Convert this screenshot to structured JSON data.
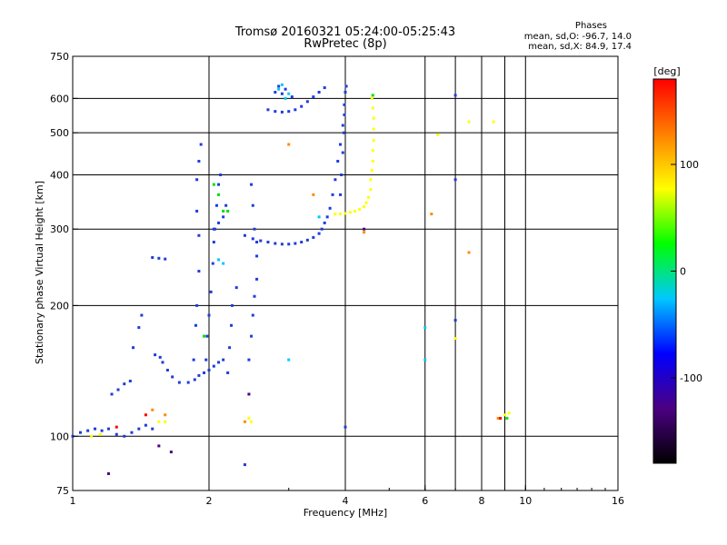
{
  "chart_data": {
    "type": "scatter",
    "title": "Tromsø 20160321 05:24:00-05:25:43",
    "subtitle": "RwPretec (8p)",
    "xlabel": "Frequency [MHz]",
    "ylabel": "Stationary phase Virtual Height [km]",
    "x_scale": "log2",
    "y_scale": "log",
    "xlim": [
      1,
      16
    ],
    "ylim": [
      75,
      750
    ],
    "x_ticks": [
      1,
      2,
      4,
      6,
      8,
      10,
      16
    ],
    "x_tick_labels": [
      "1",
      "2",
      "4",
      "6",
      "8",
      "10",
      "16"
    ],
    "x_grid": [
      2,
      4,
      6,
      7,
      8,
      9,
      10
    ],
    "y_ticks": [
      75,
      100,
      200,
      300,
      400,
      500,
      600,
      750
    ],
    "y_tick_labels": [
      "75",
      "100",
      "200",
      "300",
      "400",
      "500",
      "600",
      "750"
    ],
    "y_grid": [
      100,
      200,
      300,
      400,
      500,
      600
    ],
    "grid": true,
    "stats": {
      "title": "Phases",
      "line_o": "mean, sd,O: -96.7, 14.0",
      "line_x": "mean, sd,X:  84.9, 17.4"
    },
    "colorbar": {
      "label": "[deg]",
      "range": [
        -180,
        180
      ],
      "ticks": [
        100,
        0,
        -100
      ],
      "tick_labels": [
        "100",
        "0",
        "-100"
      ],
      "colors": [
        "#000000",
        "#4b0082",
        "#0000ff",
        "#00c8ff",
        "#00ff00",
        "#ffff00",
        "#ff8000",
        "#ff0000"
      ]
    },
    "series": [
      {
        "color": "#1e3cdc",
        "points": [
          [
            1.0,
            100
          ],
          [
            1.04,
            102
          ],
          [
            1.08,
            103
          ],
          [
            1.12,
            104
          ],
          [
            1.16,
            103
          ],
          [
            1.2,
            104
          ],
          [
            1.25,
            101
          ],
          [
            1.3,
            100
          ],
          [
            1.35,
            102
          ],
          [
            1.4,
            104
          ],
          [
            1.45,
            106
          ],
          [
            1.5,
            104
          ],
          [
            1.22,
            125
          ],
          [
            1.26,
            128
          ],
          [
            1.3,
            132
          ],
          [
            1.34,
            134
          ],
          [
            1.36,
            160
          ],
          [
            1.4,
            178
          ],
          [
            1.42,
            190
          ],
          [
            1.5,
            258
          ],
          [
            1.55,
            257
          ],
          [
            1.6,
            256
          ],
          [
            1.52,
            154
          ],
          [
            1.56,
            152
          ],
          [
            1.58,
            148
          ],
          [
            1.62,
            142
          ],
          [
            1.66,
            137
          ],
          [
            1.72,
            133
          ],
          [
            1.8,
            133
          ],
          [
            1.86,
            135
          ],
          [
            1.9,
            138
          ],
          [
            1.95,
            140
          ],
          [
            2.0,
            142
          ],
          [
            2.05,
            145
          ],
          [
            2.1,
            148
          ],
          [
            2.15,
            150
          ],
          [
            1.85,
            150
          ],
          [
            1.87,
            180
          ],
          [
            1.88,
            200
          ],
          [
            1.9,
            240
          ],
          [
            1.9,
            290
          ],
          [
            1.88,
            330
          ],
          [
            1.88,
            390
          ],
          [
            1.9,
            430
          ],
          [
            1.92,
            470
          ],
          [
            1.97,
            150
          ],
          [
            1.98,
            170
          ],
          [
            2.0,
            190
          ],
          [
            2.02,
            215
          ],
          [
            2.04,
            250
          ],
          [
            2.05,
            280
          ],
          [
            2.06,
            300
          ],
          [
            2.08,
            340
          ],
          [
            2.1,
            380
          ],
          [
            2.12,
            400
          ],
          [
            2.05,
            300
          ],
          [
            2.1,
            310
          ],
          [
            2.15,
            320
          ],
          [
            2.18,
            340
          ],
          [
            2.2,
            140
          ],
          [
            2.22,
            160
          ],
          [
            2.24,
            180
          ],
          [
            2.25,
            200
          ],
          [
            2.3,
            220
          ],
          [
            2.45,
            150
          ],
          [
            2.48,
            170
          ],
          [
            2.5,
            190
          ],
          [
            2.52,
            210
          ],
          [
            2.55,
            230
          ],
          [
            2.55,
            260
          ],
          [
            2.55,
            280
          ],
          [
            2.52,
            300
          ],
          [
            2.5,
            340
          ],
          [
            2.48,
            380
          ],
          [
            2.4,
            290
          ],
          [
            2.5,
            285
          ],
          [
            2.6,
            282
          ],
          [
            2.7,
            280
          ],
          [
            2.8,
            278
          ],
          [
            2.9,
            277
          ],
          [
            3.0,
            277
          ],
          [
            3.1,
            278
          ],
          [
            3.2,
            280
          ],
          [
            3.3,
            283
          ],
          [
            3.4,
            287
          ],
          [
            3.5,
            293
          ],
          [
            3.55,
            300
          ],
          [
            3.6,
            310
          ],
          [
            3.65,
            320
          ],
          [
            3.7,
            335
          ],
          [
            3.75,
            360
          ],
          [
            3.8,
            390
          ],
          [
            3.85,
            430
          ],
          [
            3.9,
            470
          ],
          [
            3.95,
            520
          ],
          [
            3.98,
            580
          ],
          [
            4.0,
            620
          ],
          [
            4.02,
            640
          ],
          [
            3.9,
            360
          ],
          [
            3.92,
            400
          ],
          [
            3.95,
            450
          ],
          [
            3.97,
            500
          ],
          [
            3.98,
            550
          ],
          [
            2.7,
            565
          ],
          [
            2.8,
            560
          ],
          [
            2.9,
            558
          ],
          [
            3.0,
            560
          ],
          [
            3.1,
            565
          ],
          [
            3.2,
            575
          ],
          [
            3.3,
            590
          ],
          [
            3.4,
            605
          ],
          [
            3.5,
            620
          ],
          [
            3.6,
            635
          ],
          [
            2.8,
            620
          ],
          [
            2.85,
            640
          ],
          [
            2.9,
            615
          ],
          [
            2.95,
            630
          ],
          [
            3.05,
            605
          ],
          [
            2.4,
            86
          ],
          [
            4.0,
            105
          ],
          [
            7.0,
            610
          ],
          [
            7.0,
            390
          ],
          [
            7.0,
            185
          ]
        ]
      },
      {
        "color": "#ffff00",
        "points": [
          [
            3.8,
            325
          ],
          [
            3.9,
            325
          ],
          [
            4.0,
            326
          ],
          [
            4.1,
            328
          ],
          [
            4.2,
            330
          ],
          [
            4.3,
            333
          ],
          [
            4.4,
            338
          ],
          [
            4.45,
            345
          ],
          [
            4.5,
            355
          ],
          [
            4.55,
            370
          ],
          [
            4.55,
            390
          ],
          [
            4.58,
            410
          ],
          [
            4.6,
            430
          ],
          [
            4.6,
            455
          ],
          [
            4.62,
            480
          ],
          [
            4.62,
            510
          ],
          [
            4.62,
            540
          ],
          [
            4.6,
            570
          ],
          [
            4.58,
            600
          ],
          [
            1.1,
            100
          ],
          [
            1.15,
            101
          ],
          [
            1.55,
            108
          ],
          [
            1.6,
            108
          ],
          [
            2.45,
            110
          ],
          [
            2.48,
            108
          ],
          [
            6.4,
            495
          ],
          [
            7.5,
            530
          ],
          [
            8.5,
            530
          ],
          [
            9.0,
            112
          ],
          [
            9.2,
            113
          ],
          [
            7.0,
            168
          ]
        ]
      },
      {
        "color": "#00c8ff",
        "points": [
          [
            2.85,
            630
          ],
          [
            2.9,
            645
          ],
          [
            2.95,
            600
          ],
          [
            3.0,
            615
          ],
          [
            2.1,
            255
          ],
          [
            2.15,
            250
          ],
          [
            3.5,
            320
          ],
          [
            6.0,
            178
          ],
          [
            6.0,
            150
          ],
          [
            3.0,
            150
          ]
        ]
      },
      {
        "color": "#00e000",
        "points": [
          [
            1.95,
            170
          ],
          [
            2.05,
            380
          ],
          [
            2.1,
            360
          ],
          [
            2.15,
            330
          ],
          [
            2.2,
            330
          ],
          [
            9.1,
            110
          ],
          [
            4.6,
            610
          ]
        ]
      },
      {
        "color": "#ff8c00",
        "points": [
          [
            1.5,
            115
          ],
          [
            1.6,
            112
          ],
          [
            2.4,
            108
          ],
          [
            3.0,
            470
          ],
          [
            3.4,
            360
          ],
          [
            4.4,
            295
          ],
          [
            6.2,
            325
          ],
          [
            7.5,
            265
          ],
          [
            8.7,
            110
          ]
        ]
      },
      {
        "color": "#ff0000",
        "points": [
          [
            1.45,
            112
          ],
          [
            1.25,
            105
          ],
          [
            8.8,
            110
          ]
        ]
      },
      {
        "color": "#4b0082",
        "points": [
          [
            1.2,
            82
          ],
          [
            1.65,
            92
          ],
          [
            2.45,
            125
          ],
          [
            4.4,
            300
          ],
          [
            1.55,
            95
          ]
        ]
      }
    ]
  }
}
